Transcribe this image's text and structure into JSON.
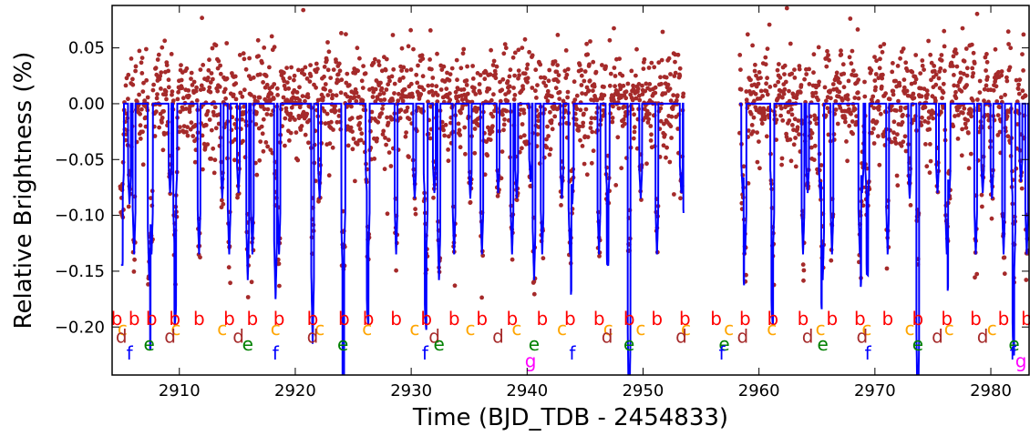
{
  "chart_data": {
    "type": "scatter",
    "title": "",
    "xlabel": "Time (BJD_TDB - 2454833)",
    "ylabel": "Relative Brightness (%)",
    "xlim": [
      2904.2,
      2983.3
    ],
    "ylim": [
      -0.243,
      0.088
    ],
    "x_ticks": [
      2910,
      2920,
      2930,
      2940,
      2950,
      2960,
      2970,
      2980
    ],
    "x_tick_labels": [
      "2910",
      "2920",
      "2930",
      "2940",
      "2950",
      "2960",
      "2970",
      "2980"
    ],
    "y_ticks": [
      0.05,
      0.0,
      -0.05,
      -0.1,
      -0.15,
      -0.2
    ],
    "y_tick_labels": [
      "0.05",
      "0.00",
      "−0.05",
      "−0.10",
      "−0.15",
      "−0.20"
    ],
    "data_gap": [
      2953.5,
      2958.3
    ],
    "colors": {
      "points": "#a52a2a",
      "model": "#0000ff",
      "b": "#ff0000",
      "c": "#ffa500",
      "d": "#a52a2a",
      "e": "#008000",
      "f": "#0000ff",
      "g": "#ff00ff"
    },
    "series": [
      {
        "name": "b",
        "transit_times": [
          2904.6,
          2906.1,
          2907.6,
          2909.6,
          2911.7,
          2914.3,
          2916.3,
          2918.6,
          2921.5,
          2924.2,
          2926.3,
          2928.7,
          2931.3,
          2933.7,
          2936.1,
          2938.7,
          2941.3,
          2943.7,
          2946.2,
          2948.8,
          2951.2,
          2953.6,
          2956.3,
          2958.8,
          2961.2,
          2963.8,
          2966.3,
          2968.7,
          2971.1,
          2973.7,
          2976.2,
          2978.7,
          2981.1,
          2983.1
        ],
        "depth": -0.135,
        "label_y": -0.198
      },
      {
        "name": "c",
        "transit_times": [
          2905.1,
          2909.7,
          2913.7,
          2918.3,
          2922.1,
          2926.2,
          2930.3,
          2935.1,
          2939.1,
          2943.0,
          2947.0,
          2949.8,
          2953.7,
          2957.4,
          2961.1,
          2965.3,
          2969.3,
          2973.0,
          2976.4,
          2980.1
        ],
        "depth": -0.085,
        "label_y": -0.207
      },
      {
        "name": "d",
        "transit_times": [
          2905.0,
          2909.2,
          2915.1,
          2921.5,
          2932.0,
          2937.5,
          2946.9,
          2953.3,
          2958.6,
          2964.2,
          2968.9,
          2975.4,
          2979.3
        ],
        "depth": -0.08,
        "label_y": -0.214
      },
      {
        "name": "e",
        "transit_times": [
          2907.4,
          2915.9,
          2924.1,
          2932.4,
          2940.6,
          2948.8,
          2957.0,
          2965.5,
          2973.7,
          2982.0
        ],
        "depth": -0.158,
        "label_y": -0.221
      },
      {
        "name": "f",
        "transit_times": [
          2905.7,
          2918.3,
          2931.2,
          2943.9,
          2956.8,
          2969.4,
          2981.9
        ],
        "depth": -0.09,
        "label_y": -0.229
      },
      {
        "name": "g",
        "transit_times": [
          2940.3,
          2982.6
        ],
        "depth": -0.07,
        "label_y": -0.236
      }
    ]
  }
}
